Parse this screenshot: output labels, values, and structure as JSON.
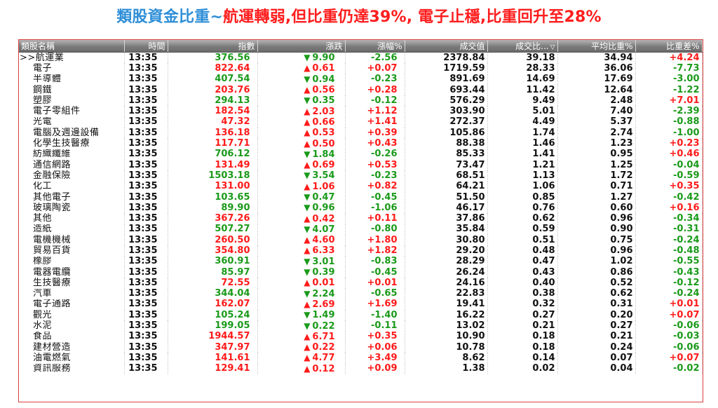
{
  "headline": {
    "part1": "類股資金比重~",
    "part2": "航運轉弱,但比重仍達39%, 電子止穩,比重回升至28%"
  },
  "columns": [
    "類股名稱",
    "時間",
    "指數",
    "漲跌",
    "漲幅%",
    "成交值",
    "成交比...",
    "平均比重%",
    "比重差%"
  ],
  "sort_indicator": "▽",
  "colors": {
    "up": "#ff1a1a",
    "down": "#1a9a1a",
    "header_title": "#2f8fd8",
    "header_red": "#ff1d1d"
  },
  "rows": [
    {
      "name": ">>航運業",
      "time": "13:35",
      "index": "376.56",
      "dir": "down",
      "change": "9.90",
      "pct": "-2.56",
      "value": "2378.84",
      "ratio": "39.18",
      "avg": "34.94",
      "diff": "+4.24"
    },
    {
      "name": "電子",
      "time": "13:35",
      "index": "822.64",
      "dir": "up",
      "change": "0.61",
      "pct": "+0.07",
      "value": "1719.59",
      "ratio": "28.33",
      "avg": "36.06",
      "diff": "-7.73"
    },
    {
      "name": "半導體",
      "time": "13:35",
      "index": "407.54",
      "dir": "down",
      "change": "0.94",
      "pct": "-0.23",
      "value": "891.69",
      "ratio": "14.69",
      "avg": "17.69",
      "diff": "-3.00"
    },
    {
      "name": "鋼鐵",
      "time": "13:35",
      "index": "203.76",
      "dir": "up",
      "change": "0.56",
      "pct": "+0.28",
      "value": "693.44",
      "ratio": "11.42",
      "avg": "12.64",
      "diff": "-1.22"
    },
    {
      "name": "塑膠",
      "time": "13:35",
      "index": "294.13",
      "dir": "down",
      "change": "0.35",
      "pct": "-0.12",
      "value": "576.29",
      "ratio": "9.49",
      "avg": "2.48",
      "diff": "+7.01"
    },
    {
      "name": "電子零組件",
      "time": "13:35",
      "index": "182.54",
      "dir": "up",
      "change": "2.03",
      "pct": "+1.12",
      "value": "303.90",
      "ratio": "5.01",
      "avg": "7.40",
      "diff": "-2.39"
    },
    {
      "name": "光電",
      "time": "13:35",
      "index": "47.32",
      "dir": "up",
      "change": "0.66",
      "pct": "+1.41",
      "value": "272.37",
      "ratio": "4.49",
      "avg": "5.37",
      "diff": "-0.88"
    },
    {
      "name": "電腦及週邊設備",
      "time": "13:35",
      "index": "136.18",
      "dir": "up",
      "change": "0.53",
      "pct": "+0.39",
      "value": "105.86",
      "ratio": "1.74",
      "avg": "2.74",
      "diff": "-1.00"
    },
    {
      "name": "化學生技醫療",
      "time": "13:35",
      "index": "117.71",
      "dir": "up",
      "change": "0.50",
      "pct": "+0.43",
      "value": "88.38",
      "ratio": "1.46",
      "avg": "1.23",
      "diff": "+0.23"
    },
    {
      "name": "紡織纖維",
      "time": "13:35",
      "index": "706.12",
      "dir": "down",
      "change": "1.84",
      "pct": "-0.26",
      "value": "85.33",
      "ratio": "1.41",
      "avg": "0.95",
      "diff": "+0.46"
    },
    {
      "name": "通信網路",
      "time": "13:35",
      "index": "131.49",
      "dir": "up",
      "change": "0.69",
      "pct": "+0.53",
      "value": "73.47",
      "ratio": "1.21",
      "avg": "1.25",
      "diff": "-0.04"
    },
    {
      "name": "金融保險",
      "time": "13:35",
      "index": "1503.18",
      "dir": "down",
      "change": "3.54",
      "pct": "-0.23",
      "value": "68.51",
      "ratio": "1.13",
      "avg": "1.72",
      "diff": "-0.59"
    },
    {
      "name": "化工",
      "time": "13:35",
      "index": "131.00",
      "dir": "up",
      "change": "1.06",
      "pct": "+0.82",
      "value": "64.21",
      "ratio": "1.06",
      "avg": "0.71",
      "diff": "+0.35"
    },
    {
      "name": "其他電子",
      "time": "13:35",
      "index": "103.65",
      "dir": "down",
      "change": "0.47",
      "pct": "-0.45",
      "value": "51.50",
      "ratio": "0.85",
      "avg": "1.27",
      "diff": "-0.42"
    },
    {
      "name": "玻璃陶瓷",
      "time": "13:35",
      "index": "89.90",
      "dir": "down",
      "change": "0.96",
      "pct": "-1.06",
      "value": "46.17",
      "ratio": "0.76",
      "avg": "0.60",
      "diff": "+0.16"
    },
    {
      "name": "其他",
      "time": "13:35",
      "index": "367.26",
      "dir": "up",
      "change": "0.42",
      "pct": "+0.11",
      "value": "37.86",
      "ratio": "0.62",
      "avg": "0.96",
      "diff": "-0.34"
    },
    {
      "name": "造紙",
      "time": "13:35",
      "index": "507.27",
      "dir": "down",
      "change": "4.07",
      "pct": "-0.80",
      "value": "35.84",
      "ratio": "0.59",
      "avg": "0.90",
      "diff": "-0.31"
    },
    {
      "name": "電機機械",
      "time": "13:35",
      "index": "260.50",
      "dir": "up",
      "change": "4.60",
      "pct": "+1.80",
      "value": "30.80",
      "ratio": "0.51",
      "avg": "0.75",
      "diff": "-0.24"
    },
    {
      "name": "貿易百貨",
      "time": "13:35",
      "index": "354.80",
      "dir": "up",
      "change": "6.33",
      "pct": "+1.82",
      "value": "29.20",
      "ratio": "0.48",
      "avg": "0.96",
      "diff": "-0.48"
    },
    {
      "name": "橡膠",
      "time": "13:35",
      "index": "360.91",
      "dir": "down",
      "change": "3.01",
      "pct": "-0.83",
      "value": "28.29",
      "ratio": "0.47",
      "avg": "1.02",
      "diff": "-0.55"
    },
    {
      "name": "電器電纜",
      "time": "13:35",
      "index": "85.97",
      "dir": "down",
      "change": "0.39",
      "pct": "-0.45",
      "value": "26.24",
      "ratio": "0.43",
      "avg": "0.86",
      "diff": "-0.43"
    },
    {
      "name": "生技醫療",
      "time": "13:35",
      "index": "72.55",
      "dir": "up",
      "change": "0.01",
      "pct": "+0.01",
      "value": "24.16",
      "ratio": "0.40",
      "avg": "0.52",
      "diff": "-0.12"
    },
    {
      "name": "汽車",
      "time": "13:35",
      "index": "344.04",
      "dir": "down",
      "change": "2.24",
      "pct": "-0.65",
      "value": "22.83",
      "ratio": "0.38",
      "avg": "0.62",
      "diff": "-0.24"
    },
    {
      "name": "電子通路",
      "time": "13:35",
      "index": "162.07",
      "dir": "up",
      "change": "2.69",
      "pct": "+1.69",
      "value": "19.41",
      "ratio": "0.32",
      "avg": "0.31",
      "diff": "+0.01"
    },
    {
      "name": "觀光",
      "time": "13:35",
      "index": "105.24",
      "dir": "down",
      "change": "1.49",
      "pct": "-1.40",
      "value": "16.22",
      "ratio": "0.27",
      "avg": "0.20",
      "diff": "+0.07"
    },
    {
      "name": "水泥",
      "time": "13:35",
      "index": "199.05",
      "dir": "down",
      "change": "0.22",
      "pct": "-0.11",
      "value": "13.02",
      "ratio": "0.21",
      "avg": "0.27",
      "diff": "-0.06"
    },
    {
      "name": "食品",
      "time": "13:35",
      "index": "1944.57",
      "dir": "up",
      "change": "6.71",
      "pct": "+0.35",
      "value": "10.90",
      "ratio": "0.18",
      "avg": "0.21",
      "diff": "-0.03"
    },
    {
      "name": "建材營造",
      "time": "13:35",
      "index": "347.97",
      "dir": "up",
      "change": "0.22",
      "pct": "+0.06",
      "value": "10.78",
      "ratio": "0.18",
      "avg": "0.24",
      "diff": "-0.06"
    },
    {
      "name": "油電燃氣",
      "time": "13:35",
      "index": "141.61",
      "dir": "up",
      "change": "4.77",
      "pct": "+3.49",
      "value": "8.62",
      "ratio": "0.14",
      "avg": "0.07",
      "diff": "+0.07"
    },
    {
      "name": "資訊服務",
      "time": "13:35",
      "index": "129.41",
      "dir": "up",
      "change": "0.12",
      "pct": "+0.09",
      "value": "1.38",
      "ratio": "0.02",
      "avg": "0.04",
      "diff": "-0.02"
    }
  ]
}
